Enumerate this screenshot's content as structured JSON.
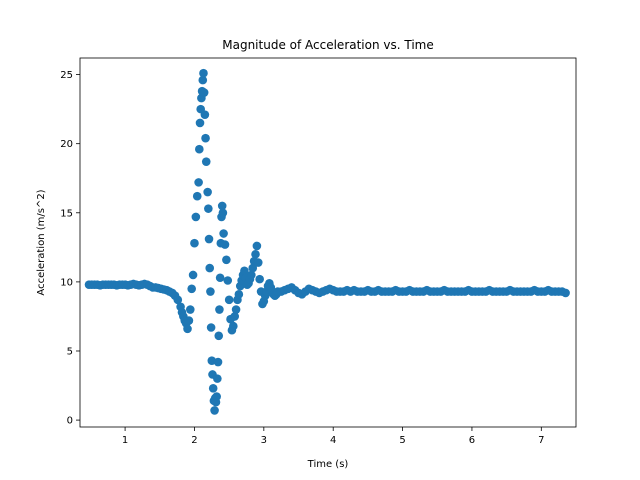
{
  "chart_data": {
    "type": "scatter",
    "title": "Magnitude of Acceleration vs. Time",
    "xlabel": "Time (s)",
    "ylabel": "Acceleration (m/s^2)",
    "xlim": [
      0.35,
      7.5
    ],
    "ylim": [
      -0.5,
      26.2
    ],
    "xticks": [
      1,
      2,
      3,
      4,
      5,
      6,
      7
    ],
    "yticks": [
      0,
      5,
      10,
      15,
      20,
      25
    ],
    "grid": false,
    "legend": "none",
    "marker_color": "#1f77b4",
    "series": [
      {
        "points": [
          [
            0.48,
            9.8
          ],
          [
            0.52,
            9.8
          ],
          [
            0.56,
            9.8
          ],
          [
            0.6,
            9.8
          ],
          [
            0.64,
            9.75
          ],
          [
            0.68,
            9.8
          ],
          [
            0.72,
            9.8
          ],
          [
            0.76,
            9.8
          ],
          [
            0.8,
            9.8
          ],
          [
            0.84,
            9.8
          ],
          [
            0.88,
            9.75
          ],
          [
            0.92,
            9.8
          ],
          [
            0.96,
            9.8
          ],
          [
            1.0,
            9.8
          ],
          [
            1.04,
            9.75
          ],
          [
            1.08,
            9.8
          ],
          [
            1.12,
            9.85
          ],
          [
            1.16,
            9.8
          ],
          [
            1.2,
            9.75
          ],
          [
            1.24,
            9.8
          ],
          [
            1.28,
            9.85
          ],
          [
            1.32,
            9.8
          ],
          [
            1.36,
            9.7
          ],
          [
            1.4,
            9.6
          ],
          [
            1.44,
            9.6
          ],
          [
            1.48,
            9.55
          ],
          [
            1.52,
            9.5
          ],
          [
            1.56,
            9.45
          ],
          [
            1.6,
            9.4
          ],
          [
            1.64,
            9.3
          ],
          [
            1.68,
            9.2
          ],
          [
            1.72,
            9.0
          ],
          [
            1.76,
            8.7
          ],
          [
            1.8,
            8.2
          ],
          [
            1.82,
            7.8
          ],
          [
            1.84,
            7.5
          ],
          [
            1.86,
            7.2
          ],
          [
            1.88,
            7.0
          ],
          [
            1.9,
            6.6
          ],
          [
            1.92,
            7.2
          ],
          [
            1.94,
            8.0
          ],
          [
            1.96,
            9.5
          ],
          [
            1.98,
            10.5
          ],
          [
            2.0,
            12.8
          ],
          [
            2.02,
            14.7
          ],
          [
            2.04,
            16.2
          ],
          [
            2.06,
            17.2
          ],
          [
            2.07,
            19.6
          ],
          [
            2.08,
            21.5
          ],
          [
            2.09,
            22.5
          ],
          [
            2.1,
            23.3
          ],
          [
            2.11,
            23.8
          ],
          [
            2.12,
            24.6
          ],
          [
            2.13,
            25.1
          ],
          [
            2.14,
            23.7
          ],
          [
            2.15,
            22.1
          ],
          [
            2.16,
            20.4
          ],
          [
            2.17,
            18.7
          ],
          [
            2.19,
            16.5
          ],
          [
            2.2,
            15.3
          ],
          [
            2.21,
            13.1
          ],
          [
            2.22,
            11.0
          ],
          [
            2.23,
            9.3
          ],
          [
            2.24,
            6.7
          ],
          [
            2.25,
            4.3
          ],
          [
            2.26,
            3.3
          ],
          [
            2.27,
            2.3
          ],
          [
            2.28,
            1.4
          ],
          [
            2.29,
            0.7
          ],
          [
            2.3,
            1.6
          ],
          [
            2.31,
            1.3
          ],
          [
            2.32,
            1.7
          ],
          [
            2.33,
            3.0
          ],
          [
            2.34,
            4.2
          ],
          [
            2.35,
            6.1
          ],
          [
            2.36,
            8.0
          ],
          [
            2.37,
            10.3
          ],
          [
            2.38,
            12.8
          ],
          [
            2.39,
            14.7
          ],
          [
            2.4,
            15.5
          ],
          [
            2.41,
            15.0
          ],
          [
            2.42,
            13.5
          ],
          [
            2.44,
            12.7
          ],
          [
            2.46,
            11.6
          ],
          [
            2.48,
            10.1
          ],
          [
            2.5,
            8.7
          ],
          [
            2.52,
            7.3
          ],
          [
            2.54,
            6.5
          ],
          [
            2.56,
            6.8
          ],
          [
            2.58,
            7.5
          ],
          [
            2.6,
            8.0
          ],
          [
            2.62,
            8.7
          ],
          [
            2.64,
            9.1
          ],
          [
            2.66,
            9.7
          ],
          [
            2.68,
            10.1
          ],
          [
            2.7,
            10.5
          ],
          [
            2.72,
            10.8
          ],
          [
            2.74,
            10.3
          ],
          [
            2.76,
            9.8
          ],
          [
            2.78,
            9.9
          ],
          [
            2.8,
            10.2
          ],
          [
            2.82,
            10.5
          ],
          [
            2.84,
            11.0
          ],
          [
            2.86,
            11.5
          ],
          [
            2.88,
            12.0
          ],
          [
            2.9,
            12.6
          ],
          [
            2.92,
            11.4
          ],
          [
            2.94,
            10.2
          ],
          [
            2.96,
            9.3
          ],
          [
            2.98,
            8.4
          ],
          [
            3.0,
            8.6
          ],
          [
            3.02,
            9.0
          ],
          [
            3.04,
            9.3
          ],
          [
            3.06,
            9.7
          ],
          [
            3.08,
            9.9
          ],
          [
            3.1,
            9.6
          ],
          [
            3.12,
            9.3
          ],
          [
            3.14,
            9.1
          ],
          [
            3.16,
            9.0
          ],
          [
            3.18,
            9.1
          ],
          [
            3.2,
            9.3
          ],
          [
            3.25,
            9.3
          ],
          [
            3.3,
            9.4
          ],
          [
            3.35,
            9.5
          ],
          [
            3.4,
            9.6
          ],
          [
            3.45,
            9.4
          ],
          [
            3.5,
            9.2
          ],
          [
            3.55,
            9.1
          ],
          [
            3.6,
            9.3
          ],
          [
            3.65,
            9.5
          ],
          [
            3.7,
            9.4
          ],
          [
            3.75,
            9.3
          ],
          [
            3.8,
            9.2
          ],
          [
            3.85,
            9.3
          ],
          [
            3.9,
            9.4
          ],
          [
            3.95,
            9.5
          ],
          [
            4.0,
            9.4
          ],
          [
            4.05,
            9.3
          ],
          [
            4.1,
            9.3
          ],
          [
            4.15,
            9.3
          ],
          [
            4.2,
            9.4
          ],
          [
            4.25,
            9.3
          ],
          [
            4.3,
            9.4
          ],
          [
            4.35,
            9.3
          ],
          [
            4.4,
            9.3
          ],
          [
            4.45,
            9.3
          ],
          [
            4.5,
            9.4
          ],
          [
            4.55,
            9.3
          ],
          [
            4.6,
            9.3
          ],
          [
            4.65,
            9.4
          ],
          [
            4.7,
            9.3
          ],
          [
            4.75,
            9.3
          ],
          [
            4.8,
            9.3
          ],
          [
            4.85,
            9.3
          ],
          [
            4.9,
            9.4
          ],
          [
            4.95,
            9.3
          ],
          [
            5.0,
            9.3
          ],
          [
            5.05,
            9.3
          ],
          [
            5.1,
            9.4
          ],
          [
            5.15,
            9.3
          ],
          [
            5.2,
            9.3
          ],
          [
            5.25,
            9.3
          ],
          [
            5.3,
            9.3
          ],
          [
            5.35,
            9.4
          ],
          [
            5.4,
            9.3
          ],
          [
            5.45,
            9.3
          ],
          [
            5.5,
            9.3
          ],
          [
            5.55,
            9.3
          ],
          [
            5.6,
            9.4
          ],
          [
            5.65,
            9.3
          ],
          [
            5.7,
            9.3
          ],
          [
            5.75,
            9.3
          ],
          [
            5.8,
            9.3
          ],
          [
            5.85,
            9.3
          ],
          [
            5.9,
            9.3
          ],
          [
            5.95,
            9.4
          ],
          [
            6.0,
            9.3
          ],
          [
            6.05,
            9.3
          ],
          [
            6.1,
            9.3
          ],
          [
            6.15,
            9.3
          ],
          [
            6.2,
            9.3
          ],
          [
            6.25,
            9.4
          ],
          [
            6.3,
            9.3
          ],
          [
            6.35,
            9.3
          ],
          [
            6.4,
            9.3
          ],
          [
            6.45,
            9.3
          ],
          [
            6.5,
            9.3
          ],
          [
            6.55,
            9.4
          ],
          [
            6.6,
            9.3
          ],
          [
            6.65,
            9.3
          ],
          [
            6.7,
            9.3
          ],
          [
            6.75,
            9.3
          ],
          [
            6.8,
            9.3
          ],
          [
            6.85,
            9.3
          ],
          [
            6.9,
            9.4
          ],
          [
            6.95,
            9.3
          ],
          [
            7.0,
            9.3
          ],
          [
            7.05,
            9.3
          ],
          [
            7.1,
            9.4
          ],
          [
            7.15,
            9.3
          ],
          [
            7.2,
            9.3
          ],
          [
            7.25,
            9.3
          ],
          [
            7.3,
            9.3
          ],
          [
            7.35,
            9.2
          ]
        ]
      }
    ]
  }
}
